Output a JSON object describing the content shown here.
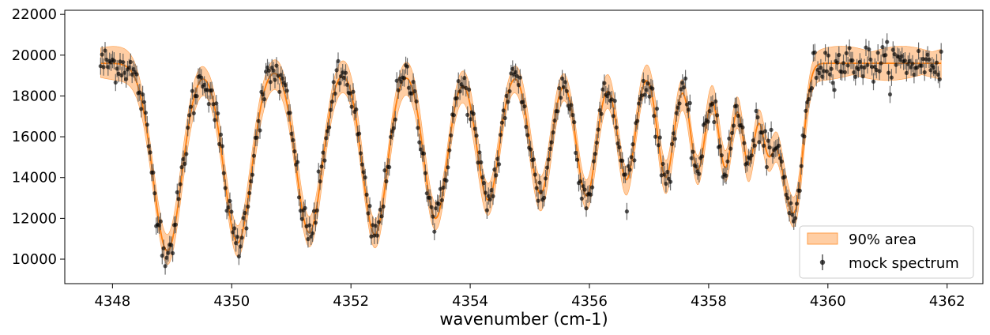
{
  "chart_data": {
    "type": "line",
    "title": "",
    "xlabel": "wavenumber (cm-1)",
    "ylabel": "",
    "xlim": [
      4347.2,
      4362.6
    ],
    "ylim": [
      8800,
      22200
    ],
    "grid": false,
    "legend_position": "bottom-right",
    "x_ticks": [
      4348,
      4350,
      4352,
      4354,
      4356,
      4358,
      4360,
      4362
    ],
    "y_ticks": [
      10000,
      12000,
      14000,
      16000,
      18000,
      20000,
      22000
    ],
    "x_tick_labels": [
      "4348",
      "4350",
      "4352",
      "4354",
      "4356",
      "4358",
      "4360",
      "4362"
    ],
    "y_tick_labels": [
      "10000",
      "12000",
      "14000",
      "16000",
      "18000",
      "20000",
      "22000"
    ],
    "colors": {
      "band": "#ffbe86",
      "band_edge": "#ff9f4a",
      "model": "#ff7f0e",
      "points": "#000000",
      "errorbar": "#555555"
    },
    "legend": [
      {
        "label": "90% area",
        "kind": "band"
      },
      {
        "label": "mock spectrum",
        "kind": "errorbar"
      }
    ],
    "x_range": [
      4347.8,
      4361.9
    ],
    "continuum": 19600,
    "absorption_lines": [
      {
        "x": 4348.92,
        "depth": 9200,
        "width": 0.24
      },
      {
        "x": 4350.1,
        "depth": 8800,
        "width": 0.23
      },
      {
        "x": 4351.3,
        "depth": 8300,
        "width": 0.22
      },
      {
        "x": 4352.4,
        "depth": 8400,
        "width": 0.21
      },
      {
        "x": 4353.42,
        "depth": 7600,
        "width": 0.2
      },
      {
        "x": 4354.3,
        "depth": 6700,
        "width": 0.19
      },
      {
        "x": 4355.18,
        "depth": 6400,
        "width": 0.18
      },
      {
        "x": 4355.95,
        "depth": 6500,
        "width": 0.17
      },
      {
        "x": 4356.62,
        "depth": 5700,
        "width": 0.15
      },
      {
        "x": 4357.28,
        "depth": 5600,
        "width": 0.14
      },
      {
        "x": 4357.82,
        "depth": 5200,
        "width": 0.13
      },
      {
        "x": 4358.28,
        "depth": 5100,
        "width": 0.12
      },
      {
        "x": 4358.67,
        "depth": 4900,
        "width": 0.11
      },
      {
        "x": 4359.0,
        "depth": 4200,
        "width": 0.11
      },
      {
        "x": 4359.28,
        "depth": 4400,
        "width": 0.12
      },
      {
        "x": 4359.48,
        "depth": 5800,
        "width": 0.12
      }
    ],
    "band_halfwidth": 700,
    "n_points": 560,
    "errorbar_halfwidth": 420,
    "noise_amplitude": 450,
    "series": [
      {
        "name": "90% area",
        "kind": "band"
      },
      {
        "name": "mock spectrum",
        "kind": "errorbar"
      }
    ]
  }
}
